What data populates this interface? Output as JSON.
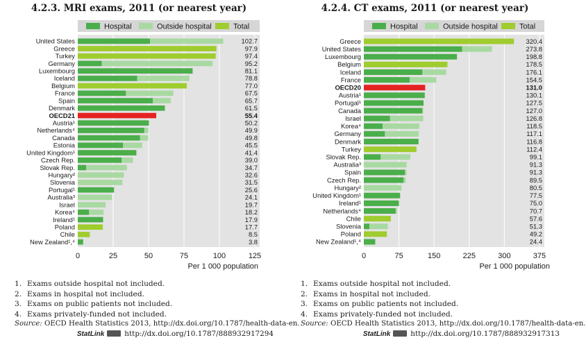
{
  "colors": {
    "hospital": "#4aae4a",
    "outside": "#a9d9a2",
    "total": "#9fcc2e",
    "oecd": "#e52222",
    "panel_bg": "#e3e3e3",
    "legend_bg": "#d6d6d6"
  },
  "charts": [
    {
      "title": "4.2.3. MRI exams, 2011 (or nearest year)",
      "legend": [
        "Hospital",
        "Outside hospital",
        "Total"
      ],
      "x_axis_label": "Per 1 000 population",
      "notes": [
        {
          "num": "1.",
          "text": "Exams outside hospital not included."
        },
        {
          "num": "2.",
          "text": "Exams in hospital not included."
        },
        {
          "num": "3.",
          "text": "Exams on public patients not included."
        },
        {
          "num": "4.",
          "text": "Exams privately-funded not included."
        }
      ],
      "source_prefix": "Source:",
      "source_text": "OECD Health Statistics 2013, http://dx.doi.org/10.1787/health-data-en.",
      "statlink_label": "StatLink",
      "statlink_url": "http://dx.doi.org/10.1787/888932917294"
    },
    {
      "title": "4.2.4. CT exams, 2011 (or nearest year)",
      "legend": [
        "Hospital",
        "Outside hospital",
        "Total"
      ],
      "x_axis_label": "Per 1 000 population",
      "notes": [
        {
          "num": "1.",
          "text": "Exams outside hospital not included."
        },
        {
          "num": "2.",
          "text": "Exams in hospital not included."
        },
        {
          "num": "3.",
          "text": "Exams on public patients not included."
        },
        {
          "num": "4.",
          "text": "Exams privately-funded not included."
        }
      ],
      "source_prefix": "Source:",
      "source_text": "OECD Health Statistics 2013, http://dx.doi.org/10.1787/health-data-en.",
      "statlink_label": "StatLink",
      "statlink_url": "http://dx.doi.org/10.1787/888932917313"
    }
  ],
  "chart_data": [
    {
      "type": "bar",
      "orientation": "horizontal",
      "stacked": true,
      "xlim": [
        0,
        125
      ],
      "xticks": [
        "0",
        "25",
        "50",
        "75",
        "100",
        "125"
      ],
      "series_names": [
        "Hospital",
        "Outside hospital",
        "Total"
      ],
      "rows": [
        {
          "label": "United States",
          "hospital": 51,
          "outside": 51.7,
          "total": 0,
          "value_label": "102.7",
          "bold": false
        },
        {
          "label": "Greece",
          "hospital": 0,
          "outside": 0,
          "total": 97.9,
          "value_label": "97.9",
          "bold": false
        },
        {
          "label": "Turkey",
          "hospital": 0,
          "outside": 0,
          "total": 97.4,
          "value_label": "97.4",
          "bold": false
        },
        {
          "label": "Germany",
          "hospital": 17,
          "outside": 78.2,
          "total": 0,
          "value_label": "95.2",
          "bold": false
        },
        {
          "label": "Luxembourg",
          "hospital": 81.1,
          "outside": 0,
          "total": 0,
          "value_label": "81.1",
          "bold": false
        },
        {
          "label": "Iceland",
          "hospital": 42,
          "outside": 36.8,
          "total": 0,
          "value_label": "78.8",
          "bold": false
        },
        {
          "label": "Belgium",
          "hospital": 0,
          "outside": 0,
          "total": 77.0,
          "value_label": "77.0",
          "bold": false
        },
        {
          "label": "France",
          "hospital": 34,
          "outside": 33.5,
          "total": 0,
          "value_label": "67.5",
          "bold": false
        },
        {
          "label": "Spain",
          "hospital": 53,
          "outside": 12.7,
          "total": 0,
          "value_label": "65.7",
          "bold": false
        },
        {
          "label": "Denmark",
          "hospital": 61.5,
          "outside": 0,
          "total": 0,
          "value_label": "61.5",
          "bold": false
        },
        {
          "label": "OECD21",
          "hospital": 0,
          "outside": 0,
          "total": 0,
          "oecd": 55.4,
          "value_label": "55.4",
          "bold": true
        },
        {
          "label": "Austria¹",
          "hospital": 50.2,
          "outside": 0,
          "total": 0,
          "value_label": "50.2",
          "bold": false
        },
        {
          "label": "Netherlands⁴",
          "hospital": 47,
          "outside": 2.9,
          "total": 0,
          "value_label": "49.9",
          "bold": false
        },
        {
          "label": "Canada",
          "hospital": 44,
          "outside": 5.8,
          "total": 0,
          "value_label": "49.8",
          "bold": false
        },
        {
          "label": "Estonia",
          "hospital": 32,
          "outside": 13.5,
          "total": 0,
          "value_label": "45.5",
          "bold": false
        },
        {
          "label": "United Kingdom¹",
          "hospital": 41.4,
          "outside": 0,
          "total": 0,
          "value_label": "41.4",
          "bold": false
        },
        {
          "label": "Czech Rep.",
          "hospital": 31,
          "outside": 8.0,
          "total": 0,
          "value_label": "39.0",
          "bold": false
        },
        {
          "label": "Slovak Rep.",
          "hospital": 6,
          "outside": 28.7,
          "total": 0,
          "value_label": "34.7",
          "bold": false
        },
        {
          "label": "Hungary²",
          "hospital": 0,
          "outside": 32.6,
          "total": 0,
          "value_label": "32.6",
          "bold": false
        },
        {
          "label": "Slovenia",
          "hospital": 0,
          "outside": 31.5,
          "total": 0,
          "value_label": "31.5",
          "bold": false
        },
        {
          "label": "Portugal¹",
          "hospital": 25.6,
          "outside": 0,
          "total": 0,
          "value_label": "25.6",
          "bold": false
        },
        {
          "label": "Australia³",
          "hospital": 0,
          "outside": 24.1,
          "total": 0,
          "value_label": "24.1",
          "bold": false
        },
        {
          "label": "Israel",
          "hospital": 0,
          "outside": 19.7,
          "total": 0,
          "value_label": "19.7",
          "bold": false
        },
        {
          "label": "Korea⁴",
          "hospital": 8,
          "outside": 10.2,
          "total": 0,
          "value_label": "18.2",
          "bold": false
        },
        {
          "label": "Ireland¹",
          "hospital": 17.9,
          "outside": 0,
          "total": 0,
          "value_label": "17.9",
          "bold": false
        },
        {
          "label": "Poland",
          "hospital": 0,
          "outside": 0,
          "total": 17.7,
          "value_label": "17.7",
          "bold": false
        },
        {
          "label": "Chile",
          "hospital": 0,
          "outside": 0,
          "total": 8.5,
          "value_label": "8.5",
          "bold": false
        },
        {
          "label": "New Zealand¹,⁴",
          "hospital": 3.8,
          "outside": 0,
          "total": 0,
          "value_label": "3.8",
          "bold": false
        }
      ]
    },
    {
      "type": "bar",
      "orientation": "horizontal",
      "stacked": true,
      "xlim": [
        0,
        375
      ],
      "xticks": [
        "0",
        "75",
        "150",
        "225",
        "300",
        "375"
      ],
      "series_names": [
        "Hospital",
        "Outside hospital",
        "Total"
      ],
      "rows": [
        {
          "label": "Greece",
          "hospital": 0,
          "outside": 0,
          "total": 320.4,
          "value_label": "320.4",
          "bold": false
        },
        {
          "label": "United States",
          "hospital": 210,
          "outside": 63.8,
          "total": 0,
          "value_label": "273.8",
          "bold": false
        },
        {
          "label": "Luxembourg",
          "hospital": 198.8,
          "outside": 0,
          "total": 0,
          "value_label": "198.8",
          "bold": false
        },
        {
          "label": "Belgium",
          "hospital": 0,
          "outside": 0,
          "total": 178.5,
          "value_label": "178.5",
          "bold": false
        },
        {
          "label": "Iceland",
          "hospital": 125,
          "outside": 51.1,
          "total": 0,
          "value_label": "176.1",
          "bold": false
        },
        {
          "label": "France",
          "hospital": 98,
          "outside": 56.5,
          "total": 0,
          "value_label": "154.5",
          "bold": false
        },
        {
          "label": "OECD20",
          "hospital": 0,
          "outside": 0,
          "total": 0,
          "oecd": 131.0,
          "value_label": "131.0",
          "bold": true
        },
        {
          "label": "Austria¹",
          "hospital": 130.1,
          "outside": 0,
          "total": 0,
          "value_label": "130.1",
          "bold": false
        },
        {
          "label": "Portugal¹",
          "hospital": 127.5,
          "outside": 0,
          "total": 0,
          "value_label": "127.5",
          "bold": false
        },
        {
          "label": "Canada",
          "hospital": 125,
          "outside": 2.0,
          "total": 0,
          "value_label": "127.0",
          "bold": false
        },
        {
          "label": "Israel",
          "hospital": 56,
          "outside": 70.8,
          "total": 0,
          "value_label": "126.8",
          "bold": false
        },
        {
          "label": "Korea⁴",
          "hospital": 40,
          "outside": 78.5,
          "total": 0,
          "value_label": "118.5",
          "bold": false
        },
        {
          "label": "Germany",
          "hospital": 45,
          "outside": 72.1,
          "total": 0,
          "value_label": "117.1",
          "bold": false
        },
        {
          "label": "Denmark",
          "hospital": 116.8,
          "outside": 0,
          "total": 0,
          "value_label": "116.8",
          "bold": false
        },
        {
          "label": "Turkey",
          "hospital": 0,
          "outside": 0,
          "total": 112.4,
          "value_label": "112.4",
          "bold": false
        },
        {
          "label": "Slovak Rep.",
          "hospital": 36,
          "outside": 63.1,
          "total": 0,
          "value_label": "99.1",
          "bold": false
        },
        {
          "label": "Australia³",
          "hospital": 0,
          "outside": 91.3,
          "total": 0,
          "value_label": "91.3",
          "bold": false
        },
        {
          "label": "Spain",
          "hospital": 88,
          "outside": 3.3,
          "total": 0,
          "value_label": "91.3",
          "bold": false
        },
        {
          "label": "Czech Rep.",
          "hospital": 85,
          "outside": 4.5,
          "total": 0,
          "value_label": "89.5",
          "bold": false
        },
        {
          "label": "Hungary²",
          "hospital": 0,
          "outside": 80.5,
          "total": 0,
          "value_label": "80.5",
          "bold": false
        },
        {
          "label": "United Kingdom¹",
          "hospital": 77.5,
          "outside": 0,
          "total": 0,
          "value_label": "77.5",
          "bold": false
        },
        {
          "label": "Ireland¹",
          "hospital": 75.0,
          "outside": 0,
          "total": 0,
          "value_label": "75.0",
          "bold": false
        },
        {
          "label": "Netherlands⁴",
          "hospital": 68,
          "outside": 2.7,
          "total": 0,
          "value_label": "70.7",
          "bold": false
        },
        {
          "label": "Chile",
          "hospital": 0,
          "outside": 0,
          "total": 57.6,
          "value_label": "57.6",
          "bold": false
        },
        {
          "label": "Slovenia",
          "hospital": 12,
          "outside": 39.3,
          "total": 0,
          "value_label": "51.3",
          "bold": false
        },
        {
          "label": "Poland",
          "hospital": 0,
          "outside": 0,
          "total": 49.2,
          "value_label": "49.2",
          "bold": false
        },
        {
          "label": "New Zealand¹,⁴",
          "hospital": 24.4,
          "outside": 0,
          "total": 0,
          "value_label": "24.4",
          "bold": false
        }
      ]
    }
  ]
}
